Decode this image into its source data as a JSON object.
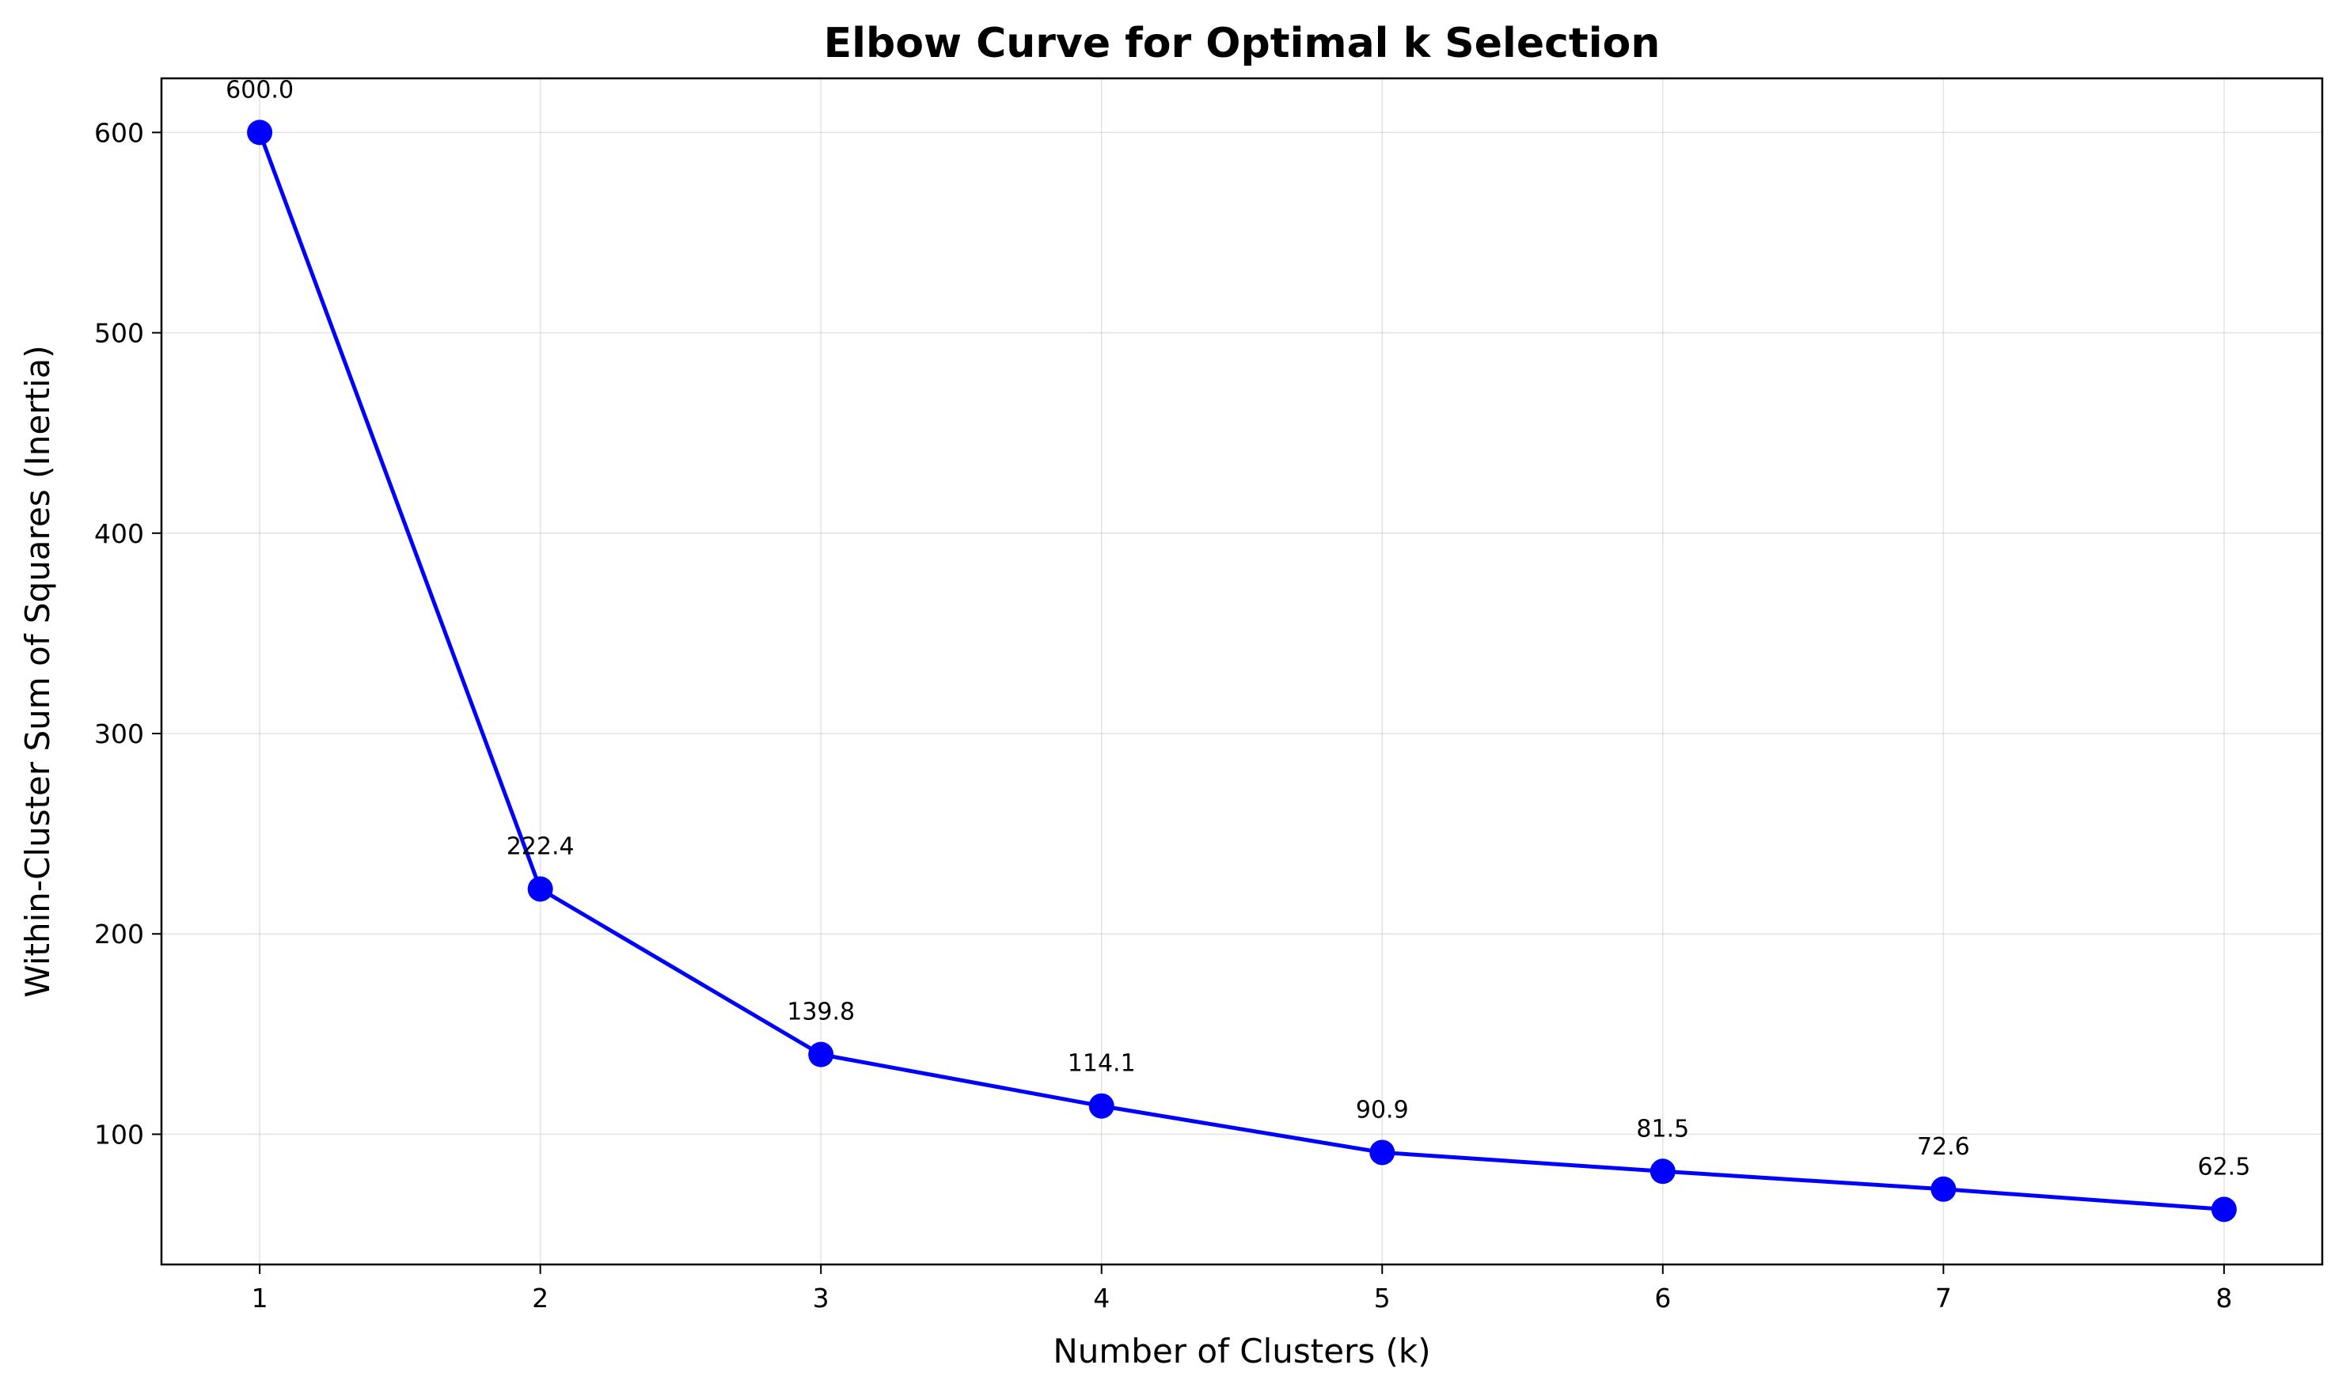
{
  "chart_data": {
    "type": "line",
    "title": "Elbow Curve for Optimal k Selection",
    "xlabel": "Number of Clusters (k)",
    "ylabel": "Within-Cluster Sum of Squares (Inertia)",
    "x": [
      1,
      2,
      3,
      4,
      5,
      6,
      7,
      8
    ],
    "series": [
      {
        "values": [
          600.0,
          222.4,
          139.8,
          114.1,
          90.9,
          81.5,
          72.6,
          62.5
        ],
        "data_labels": [
          "600.0",
          "222.4",
          "139.8",
          "114.1",
          "90.9",
          "81.5",
          "72.6",
          "62.5"
        ],
        "color": "#0000ff",
        "marker": "circle"
      }
    ],
    "xlim": [
      0.65,
      8.35
    ],
    "ylim": [
      35,
      627
    ],
    "xticks": [
      1,
      2,
      3,
      4,
      5,
      6,
      7,
      8
    ],
    "xtick_labels": [
      "1",
      "2",
      "3",
      "4",
      "5",
      "6",
      "7",
      "8"
    ],
    "yticks": [
      100,
      200,
      300,
      400,
      500,
      600
    ],
    "ytick_labels": [
      "100",
      "200",
      "300",
      "400",
      "500",
      "600"
    ],
    "grid": true,
    "legend": "none"
  }
}
